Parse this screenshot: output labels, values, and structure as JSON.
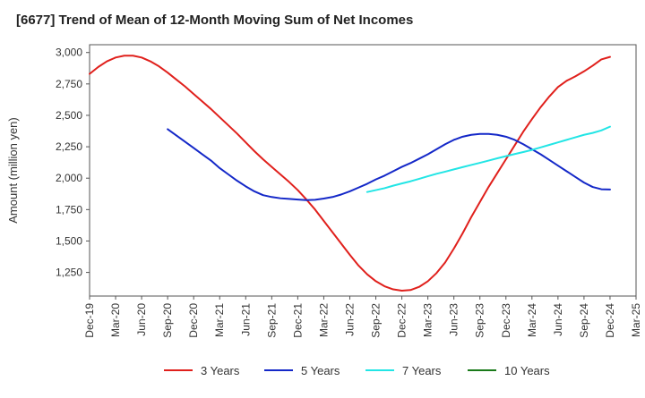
{
  "chart_data": {
    "type": "line",
    "title": "[6677]  Trend of Mean of 12-Month Moving Sum of Net Incomes",
    "xlabel": "",
    "ylabel": "Amount (million yen)",
    "ylim": [
      1062,
      3062
    ],
    "yticks": [
      1250,
      1500,
      1750,
      2000,
      2250,
      2500,
      2750,
      3000
    ],
    "ytick_labels": [
      "1,250",
      "1,500",
      "1,750",
      "2,000",
      "2,250",
      "2,500",
      "2,750",
      "3,000"
    ],
    "xlim": [
      "2019-12",
      "2025-03"
    ],
    "xtick_labels": [
      "Dec-19",
      "Mar-20",
      "Jun-20",
      "Sep-20",
      "Dec-20",
      "Mar-21",
      "Jun-21",
      "Sep-21",
      "Dec-21",
      "Mar-22",
      "Jun-22",
      "Sep-22",
      "Dec-22",
      "Mar-23",
      "Jun-23",
      "Sep-23",
      "Dec-23",
      "Mar-24",
      "Jun-24",
      "Sep-24",
      "Dec-24",
      "Mar-25"
    ],
    "grid": true,
    "legend_position": "bottom",
    "series": [
      {
        "name": "3 Years",
        "color": "#e0201c",
        "x": [
          "2019-12",
          "2020-01",
          "2020-02",
          "2020-03",
          "2020-04",
          "2020-05",
          "2020-06",
          "2020-07",
          "2020-08",
          "2020-09",
          "2020-10",
          "2020-11",
          "2020-12",
          "2021-01",
          "2021-02",
          "2021-03",
          "2021-04",
          "2021-05",
          "2021-06",
          "2021-07",
          "2021-08",
          "2021-09",
          "2021-10",
          "2021-11",
          "2021-12",
          "2022-01",
          "2022-02",
          "2022-03",
          "2022-04",
          "2022-05",
          "2022-06",
          "2022-07",
          "2022-08",
          "2022-09",
          "2022-10",
          "2022-11",
          "2022-12",
          "2023-01",
          "2023-02",
          "2023-03",
          "2023-04",
          "2023-05",
          "2023-06",
          "2023-07",
          "2023-08",
          "2023-09",
          "2023-10",
          "2023-11",
          "2023-12",
          "2024-01",
          "2024-02",
          "2024-03",
          "2024-04",
          "2024-05",
          "2024-06",
          "2024-07",
          "2024-08",
          "2024-09",
          "2024-10",
          "2024-11",
          "2024-12"
        ],
        "values": [
          2830,
          2885,
          2930,
          2960,
          2975,
          2975,
          2960,
          2930,
          2890,
          2840,
          2785,
          2730,
          2670,
          2610,
          2550,
          2485,
          2420,
          2355,
          2285,
          2215,
          2150,
          2090,
          2030,
          1970,
          1905,
          1830,
          1750,
          1660,
          1570,
          1480,
          1390,
          1305,
          1235,
          1180,
          1140,
          1115,
          1105,
          1110,
          1135,
          1180,
          1245,
          1330,
          1440,
          1560,
          1690,
          1810,
          1930,
          2040,
          2150,
          2260,
          2370,
          2470,
          2565,
          2650,
          2725,
          2775,
          2810,
          2850,
          2895,
          2945,
          2965
        ]
      },
      {
        "name": "5 Years",
        "color": "#1428c8",
        "x": [
          "2020-09",
          "2020-10",
          "2020-11",
          "2020-12",
          "2021-01",
          "2021-02",
          "2021-03",
          "2021-04",
          "2021-05",
          "2021-06",
          "2021-07",
          "2021-08",
          "2021-09",
          "2021-10",
          "2021-11",
          "2021-12",
          "2022-01",
          "2022-02",
          "2022-03",
          "2022-04",
          "2022-05",
          "2022-06",
          "2022-07",
          "2022-08",
          "2022-09",
          "2022-10",
          "2022-11",
          "2022-12",
          "2023-01",
          "2023-02",
          "2023-03",
          "2023-04",
          "2023-05",
          "2023-06",
          "2023-07",
          "2023-08",
          "2023-09",
          "2023-10",
          "2023-11",
          "2023-12",
          "2024-01",
          "2024-02",
          "2024-03",
          "2024-04",
          "2024-05",
          "2024-06",
          "2024-07",
          "2024-08",
          "2024-09",
          "2024-10",
          "2024-11",
          "2024-12"
        ],
        "values": [
          2390,
          2340,
          2290,
          2240,
          2190,
          2140,
          2080,
          2030,
          1980,
          1935,
          1895,
          1865,
          1850,
          1840,
          1835,
          1830,
          1825,
          1828,
          1838,
          1850,
          1870,
          1895,
          1925,
          1955,
          1990,
          2020,
          2055,
          2090,
          2120,
          2155,
          2190,
          2230,
          2270,
          2305,
          2330,
          2345,
          2352,
          2352,
          2345,
          2330,
          2305,
          2270,
          2230,
          2190,
          2145,
          2100,
          2055,
          2010,
          1965,
          1930,
          1912,
          1910
        ]
      },
      {
        "name": "7 Years",
        "color": "#22e5e5",
        "x": [
          "2022-08",
          "2022-09",
          "2022-10",
          "2022-11",
          "2022-12",
          "2023-01",
          "2023-02",
          "2023-03",
          "2023-04",
          "2023-05",
          "2023-06",
          "2023-07",
          "2023-08",
          "2023-09",
          "2023-10",
          "2023-11",
          "2023-12",
          "2024-01",
          "2024-02",
          "2024-03",
          "2024-04",
          "2024-05",
          "2024-06",
          "2024-07",
          "2024-08",
          "2024-09",
          "2024-10",
          "2024-11",
          "2024-12"
        ],
        "values": [
          1890,
          1905,
          1920,
          1940,
          1958,
          1975,
          1995,
          2015,
          2035,
          2052,
          2070,
          2088,
          2105,
          2122,
          2140,
          2158,
          2175,
          2192,
          2208,
          2225,
          2245,
          2265,
          2285,
          2305,
          2325,
          2345,
          2360,
          2380,
          2410
        ]
      },
      {
        "name": "10 Years",
        "color": "#1a7a1a",
        "x": [],
        "values": []
      }
    ]
  }
}
